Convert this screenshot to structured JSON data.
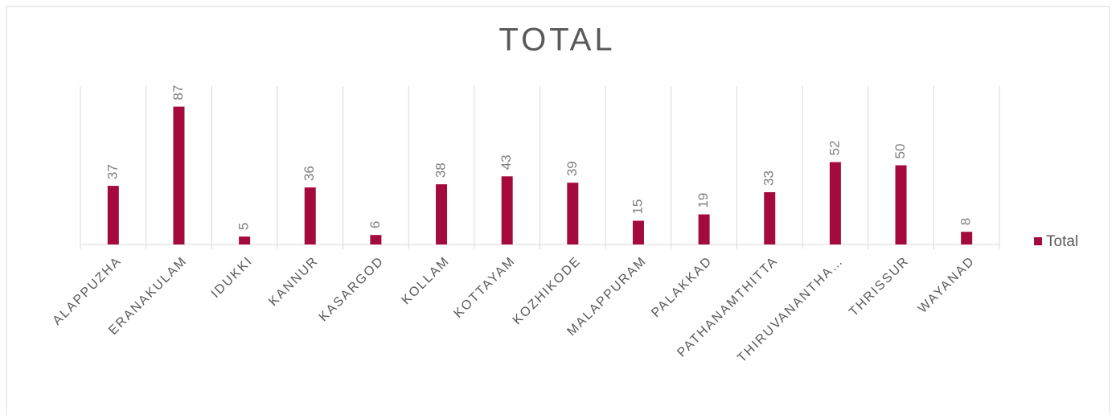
{
  "chart_data": {
    "type": "bar",
    "title": "TOTAL",
    "categories": [
      "ALAPPUZHA",
      "ERANAKULAM",
      "IDUKKI",
      "KANNUR",
      "KASARGOD",
      "KOLLAM",
      "KOTTAYAM",
      "KOZHIKODE",
      "MALAPPURAM",
      "PALAKKAD",
      "PATHANAMTHITTA",
      "THIRUVANANTHA…",
      "THRISSUR",
      "WAYANAD"
    ],
    "series": [
      {
        "name": "Total",
        "color": "#a50a3c",
        "values": [
          37,
          87,
          5,
          36,
          6,
          38,
          43,
          39,
          15,
          19,
          33,
          52,
          50,
          8
        ]
      }
    ],
    "ylim": [
      0,
      100
    ],
    "legend": "right",
    "data_labels": true
  }
}
